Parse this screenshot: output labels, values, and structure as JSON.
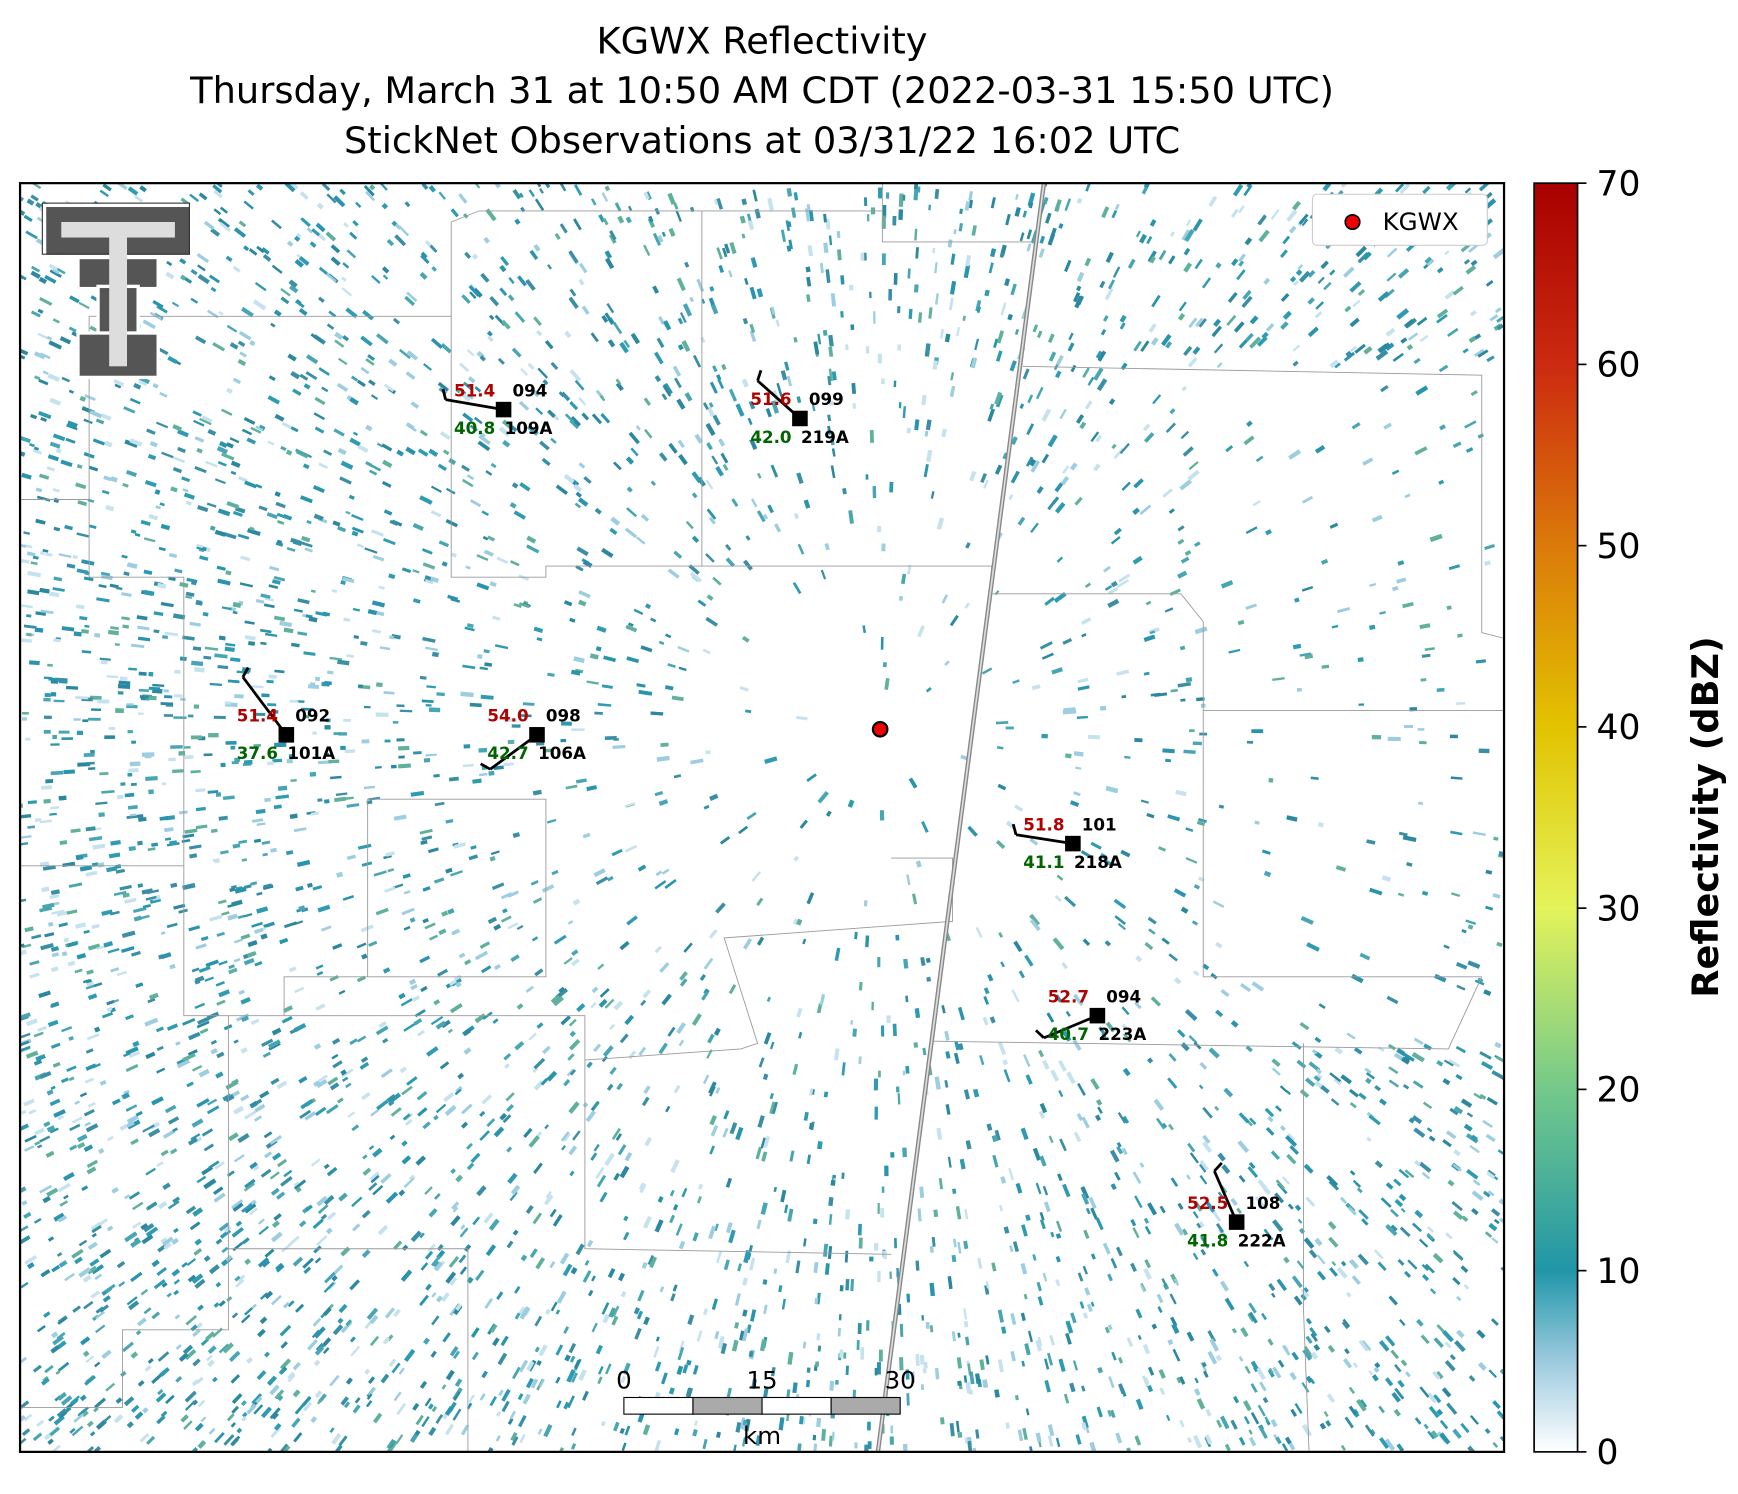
{
  "title": [
    "KGWX Reflectivity",
    "Thursday, March 31 at 10:50 AM CDT (2022-03-31 15:50 UTC)",
    "StickNet Observations at 03/31/22 16:02 UTC"
  ],
  "legend": {
    "label": "KGWX"
  },
  "stations": [
    {
      "temperature": "51.4",
      "pressure": "094",
      "dewpoint": "40.8",
      "id": "109A"
    },
    {
      "temperature": "51.6",
      "pressure": "099",
      "dewpoint": "42.0",
      "id": "219A"
    },
    {
      "temperature": "51.4",
      "pressure": "092",
      "dewpoint": "37.6",
      "id": "101A"
    },
    {
      "temperature": "54.0",
      "pressure": "098",
      "dewpoint": "42.7",
      "id": "106A"
    },
    {
      "temperature": "51.8",
      "pressure": "101",
      "dewpoint": "41.1",
      "id": "218A"
    },
    {
      "temperature": "52.7",
      "pressure": "094",
      "dewpoint": "40.7",
      "id": "223A"
    },
    {
      "temperature": "52.5",
      "pressure": "108",
      "dewpoint": "41.8",
      "id": "222A"
    }
  ],
  "scale_bar": {
    "ticks": [
      0,
      15,
      30
    ],
    "unit": "km"
  },
  "colorbar": {
    "label": "Reflectivity (dBZ)",
    "range": [
      0,
      70
    ],
    "ticks": [
      0,
      10,
      20,
      30,
      40,
      50,
      60,
      70
    ]
  }
}
